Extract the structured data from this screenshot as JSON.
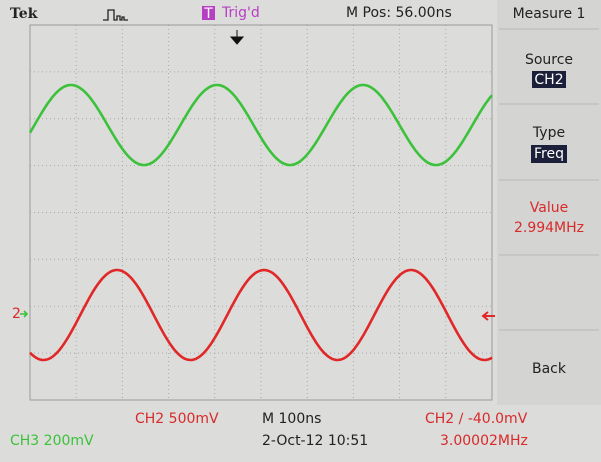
{
  "header": {
    "brand": "Tek",
    "trigger_box": "T",
    "trigger_state": "Trig'd",
    "position": "M Pos: 56.00ns"
  },
  "menu": {
    "title": "Measure 1",
    "source_label": "Source",
    "source_value": "CH2",
    "type_label": "Type",
    "type_value": "Freq",
    "value_label": "Value",
    "value": "2.994MHz",
    "back": "Back"
  },
  "markers": {
    "ch2": "2"
  },
  "footer": {
    "ch2_scale": "CH2  500mV",
    "timebase": "M 100ns",
    "trigger_level": "CH2 ∕ -40.0mV",
    "ch3_scale": "CH3  200mV",
    "date": "2-Oct-12 10:51",
    "trigger_freq": "3.00002MHz"
  }
}
